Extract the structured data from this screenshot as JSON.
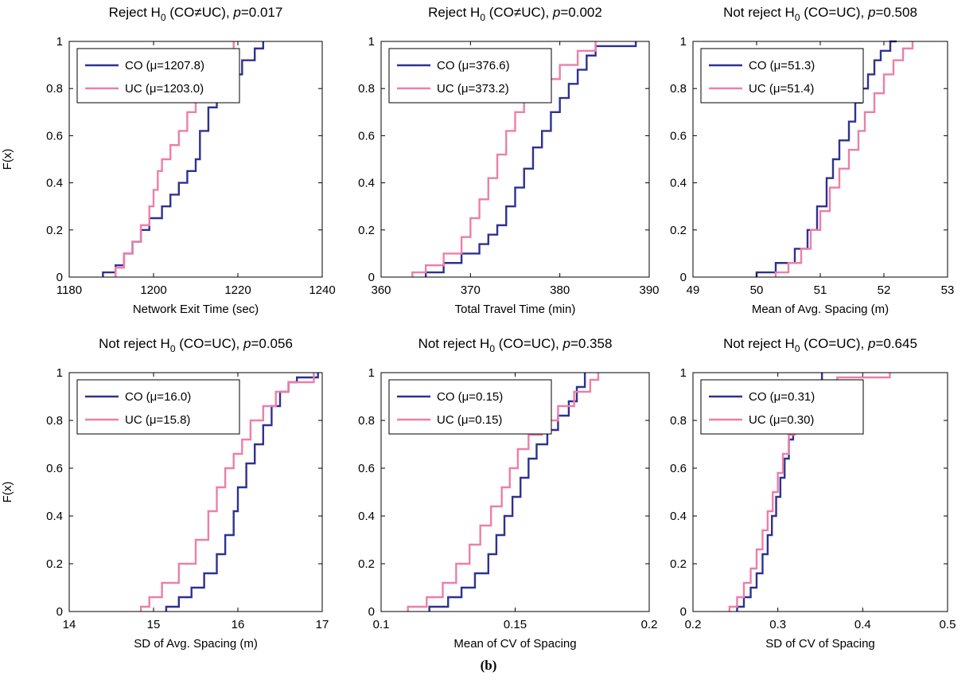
{
  "figure_caption": "(b)",
  "colors": {
    "CO": "#2e3192",
    "UC": "#ec7fa9"
  },
  "chart_data": [
    {
      "type": "line",
      "title": "Reject H0 (CO≠UC), p=0.017",
      "title_parts": {
        "prefix": "Reject H",
        "sub": "0",
        "middle": " (CO≠UC), ",
        "p": "p",
        "value": "=0.017"
      },
      "xlabel": "Network Exit Time (sec)",
      "ylabel": "F(x)",
      "xlim": [
        1180,
        1240
      ],
      "ylim": [
        0,
        1
      ],
      "xticks": [
        "1180",
        "1200",
        "1220",
        "1240"
      ],
      "yticks": [
        "0",
        "0.2",
        "0.4",
        "0.6",
        "0.8",
        "1"
      ],
      "legend": [
        "CO (μ=1207.8)",
        "UC (μ=1203.0)"
      ],
      "series": [
        {
          "name": "CO (μ=1207.8)",
          "x": [
            1188,
            1191,
            1193,
            1195,
            1197,
            1199,
            1202,
            1204,
            1206,
            1208,
            1210,
            1211,
            1213,
            1215,
            1218,
            1221,
            1224,
            1226
          ],
          "y": [
            0.02,
            0.05,
            0.1,
            0.15,
            0.2,
            0.25,
            0.3,
            0.35,
            0.4,
            0.45,
            0.5,
            0.62,
            0.72,
            0.8,
            0.86,
            0.92,
            0.97,
            1.0
          ]
        },
        {
          "name": "UC (μ=1203.0)",
          "x": [
            1191,
            1193,
            1195,
            1197,
            1199,
            1200,
            1201,
            1202,
            1204,
            1206,
            1208,
            1210,
            1212,
            1215,
            1218,
            1219
          ],
          "y": [
            0.04,
            0.1,
            0.15,
            0.22,
            0.3,
            0.37,
            0.45,
            0.5,
            0.56,
            0.62,
            0.7,
            0.78,
            0.85,
            0.9,
            0.96,
            1.0
          ]
        }
      ]
    },
    {
      "type": "line",
      "title": "Reject H0 (CO≠UC), p=0.002",
      "title_parts": {
        "prefix": "Reject H",
        "sub": "0",
        "middle": " (CO≠UC), ",
        "p": "p",
        "value": "=0.002"
      },
      "xlabel": "Total Travel Time (min)",
      "ylabel": "",
      "xlim": [
        360,
        390
      ],
      "ylim": [
        0,
        1
      ],
      "xticks": [
        "360",
        "370",
        "380",
        "390"
      ],
      "yticks": [
        "0",
        "0.2",
        "0.4",
        "0.6",
        "0.8",
        "1"
      ],
      "legend": [
        "CO (μ=376.6)",
        "UC (μ=373.2)"
      ],
      "series": [
        {
          "name": "CO (μ=376.6)",
          "x": [
            365,
            367,
            369,
            371,
            372,
            373,
            374,
            375,
            376,
            377,
            378,
            379,
            380,
            381,
            382,
            383,
            384,
            388.5
          ],
          "y": [
            0.02,
            0.06,
            0.1,
            0.14,
            0.18,
            0.22,
            0.3,
            0.38,
            0.46,
            0.55,
            0.62,
            0.7,
            0.76,
            0.82,
            0.88,
            0.94,
            0.98,
            1.0
          ]
        },
        {
          "name": "UC (μ=373.2)",
          "x": [
            363.5,
            365,
            367,
            369,
            370,
            371,
            372,
            373,
            374,
            375,
            376,
            378,
            380,
            382,
            384
          ],
          "y": [
            0.02,
            0.05,
            0.1,
            0.17,
            0.25,
            0.33,
            0.42,
            0.52,
            0.62,
            0.7,
            0.78,
            0.84,
            0.9,
            0.96,
            1.0
          ]
        }
      ]
    },
    {
      "type": "line",
      "title": "Not reject H0 (CO=UC), p=0.508",
      "title_parts": {
        "prefix": "Not reject H",
        "sub": "0",
        "middle": " (CO=UC), ",
        "p": "p",
        "value": "=0.508"
      },
      "xlabel": "Mean of Avg. Spacing (m)",
      "ylabel": "",
      "xlim": [
        49,
        53
      ],
      "ylim": [
        0,
        1
      ],
      "xticks": [
        "49",
        "50",
        "51",
        "52",
        "53"
      ],
      "yticks": [
        "0",
        "0.2",
        "0.4",
        "0.6",
        "0.8",
        "1"
      ],
      "legend": [
        "CO (μ=51.3)",
        "UC (μ=51.4)"
      ],
      "series": [
        {
          "name": "CO (μ=51.3)",
          "x": [
            50.0,
            50.3,
            50.6,
            50.8,
            50.95,
            51.1,
            51.2,
            51.3,
            51.45,
            51.55,
            51.65,
            51.75,
            51.85,
            51.95,
            52.1,
            52.2
          ],
          "y": [
            0.02,
            0.06,
            0.12,
            0.2,
            0.3,
            0.42,
            0.5,
            0.58,
            0.66,
            0.74,
            0.8,
            0.86,
            0.92,
            0.96,
            1.0,
            1.0
          ]
        },
        {
          "name": "UC (μ=51.4)",
          "x": [
            50.3,
            50.5,
            50.7,
            50.85,
            51.0,
            51.15,
            51.3,
            51.45,
            51.6,
            51.7,
            51.85,
            52.0,
            52.15,
            52.3,
            52.45
          ],
          "y": [
            0.02,
            0.06,
            0.12,
            0.2,
            0.28,
            0.38,
            0.46,
            0.54,
            0.62,
            0.7,
            0.78,
            0.86,
            0.92,
            0.97,
            1.0
          ]
        }
      ]
    },
    {
      "type": "line",
      "title": "Not reject H0 (CO=UC), p=0.056",
      "title_parts": {
        "prefix": "Not reject H",
        "sub": "0",
        "middle": " (CO=UC), ",
        "p": "p",
        "value": "=0.056"
      },
      "xlabel": "SD of Avg. Spacing (m)",
      "ylabel": "F(x)",
      "xlim": [
        14,
        17
      ],
      "ylim": [
        0,
        1
      ],
      "xticks": [
        "14",
        "15",
        "16",
        "17"
      ],
      "yticks": [
        "0",
        "0.2",
        "0.4",
        "0.6",
        "0.8",
        "1"
      ],
      "legend": [
        "CO (μ=16.0)",
        "UC (μ=15.8)"
      ],
      "series": [
        {
          "name": "CO (μ=16.0)",
          "x": [
            15.15,
            15.3,
            15.45,
            15.6,
            15.75,
            15.85,
            15.95,
            16.0,
            16.1,
            16.2,
            16.3,
            16.4,
            16.5,
            16.6,
            16.7,
            16.95
          ],
          "y": [
            0.02,
            0.06,
            0.1,
            0.16,
            0.24,
            0.32,
            0.42,
            0.52,
            0.62,
            0.7,
            0.78,
            0.86,
            0.92,
            0.96,
            0.98,
            1.0
          ]
        },
        {
          "name": "UC (μ=15.8)",
          "x": [
            14.85,
            14.95,
            15.1,
            15.3,
            15.5,
            15.65,
            15.75,
            15.85,
            15.95,
            16.05,
            16.15,
            16.3,
            16.45,
            16.6,
            16.9
          ],
          "y": [
            0.02,
            0.06,
            0.12,
            0.2,
            0.3,
            0.42,
            0.52,
            0.6,
            0.66,
            0.72,
            0.8,
            0.86,
            0.92,
            0.96,
            1.0
          ]
        }
      ]
    },
    {
      "type": "line",
      "title": "Not reject H0 (CO=UC), p=0.358",
      "title_parts": {
        "prefix": "Not reject H",
        "sub": "0",
        "middle": " (CO=UC), ",
        "p": "p",
        "value": "=0.358"
      },
      "xlabel": "Mean of CV of Spacing",
      "ylabel": "",
      "xlim": [
        0.1,
        0.2
      ],
      "ylim": [
        0,
        1
      ],
      "xticks": [
        "0.1",
        "0.15",
        "0.2"
      ],
      "yticks": [
        "0",
        "0.2",
        "0.4",
        "0.6",
        "0.8",
        "1"
      ],
      "legend": [
        "CO (μ=0.15)",
        "UC (μ=0.15)"
      ],
      "series": [
        {
          "name": "CO (μ=0.15)",
          "x": [
            0.118,
            0.125,
            0.13,
            0.135,
            0.14,
            0.143,
            0.146,
            0.149,
            0.152,
            0.155,
            0.158,
            0.162,
            0.166,
            0.17,
            0.173,
            0.176
          ],
          "y": [
            0.02,
            0.06,
            0.1,
            0.16,
            0.24,
            0.32,
            0.4,
            0.48,
            0.56,
            0.64,
            0.7,
            0.76,
            0.82,
            0.88,
            0.94,
            1.0
          ]
        },
        {
          "name": "UC (μ=0.15)",
          "x": [
            0.11,
            0.117,
            0.123,
            0.128,
            0.133,
            0.137,
            0.141,
            0.145,
            0.148,
            0.151,
            0.155,
            0.16,
            0.166,
            0.172,
            0.178,
            0.181
          ],
          "y": [
            0.02,
            0.06,
            0.12,
            0.2,
            0.28,
            0.36,
            0.44,
            0.52,
            0.6,
            0.68,
            0.74,
            0.8,
            0.86,
            0.92,
            0.97,
            1.0
          ]
        }
      ]
    },
    {
      "type": "line",
      "title": "Not reject H0 (CO=UC), p=0.645",
      "title_parts": {
        "prefix": "Not reject H",
        "sub": "0",
        "middle": " (CO=UC), ",
        "p": "p",
        "value": "=0.645"
      },
      "xlabel": "SD of CV of Spacing",
      "ylabel": "",
      "xlim": [
        0.2,
        0.5
      ],
      "ylim": [
        0,
        1
      ],
      "xticks": [
        "0.2",
        "0.3",
        "0.4",
        "0.5"
      ],
      "yticks": [
        "0",
        "0.2",
        "0.4",
        "0.6",
        "0.8",
        "1"
      ],
      "legend": [
        "CO (μ=0.31)",
        "UC (μ=0.30)"
      ],
      "series": [
        {
          "name": "CO (μ=0.31)",
          "x": [
            0.252,
            0.26,
            0.268,
            0.275,
            0.282,
            0.288,
            0.293,
            0.298,
            0.303,
            0.308,
            0.313,
            0.318,
            0.325,
            0.333,
            0.343,
            0.352
          ],
          "y": [
            0.02,
            0.06,
            0.1,
            0.16,
            0.24,
            0.32,
            0.4,
            0.48,
            0.56,
            0.64,
            0.72,
            0.78,
            0.84,
            0.9,
            0.96,
            1.0
          ]
        },
        {
          "name": "UC (μ=0.30)",
          "x": [
            0.243,
            0.252,
            0.26,
            0.268,
            0.275,
            0.282,
            0.288,
            0.294,
            0.3,
            0.306,
            0.313,
            0.32,
            0.33,
            0.345,
            0.37,
            0.432
          ],
          "y": [
            0.02,
            0.06,
            0.12,
            0.18,
            0.26,
            0.34,
            0.42,
            0.5,
            0.58,
            0.66,
            0.74,
            0.8,
            0.86,
            0.92,
            0.98,
            1.0
          ]
        }
      ]
    }
  ]
}
